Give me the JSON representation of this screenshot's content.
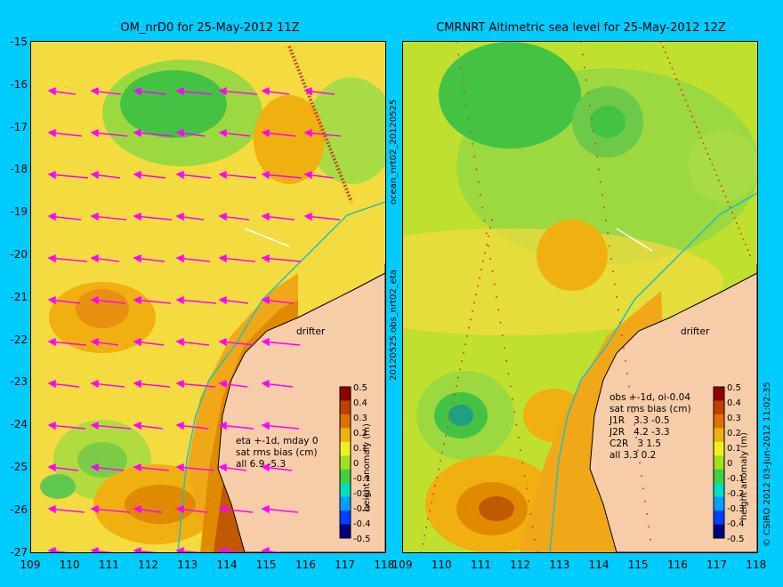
{
  "left_panel": {
    "title": "OM_nrD0 for 25-May-2012 11Z",
    "stats": [
      "eta +-1d, mday 0",
      "sat rms bias (cm)",
      "all 6.9 -5.3"
    ],
    "drifter_label": "drifter",
    "colorbar_label": "height anomaly (m)"
  },
  "right_panel": {
    "title": "CMRNRT Altimetric sea level  for 25-May-2012 12Z",
    "stats": [
      "obs +-1d, oi-0.04",
      "sat rms bias (cm)",
      "J1R   3.3 -0.5",
      "J2R   4.2 -3.3",
      "C2R   3 1.5",
      "all 3.3 0.2"
    ],
    "drifter_label": "drifter",
    "colorbar_label": "height anomaly (m)"
  },
  "side_labels": {
    "middle_top": "ocean_nrt02_20120525",
    "middle_bottom": "20120525.obs_nrt02_eta",
    "right_edge": "© CSIRO 2012   03-Jun-2012 11:02:35"
  },
  "axes": {
    "y_ticks": [
      "-15",
      "-16",
      "-17",
      "-18",
      "-19",
      "-20",
      "-21",
      "-22",
      "-23",
      "-24",
      "-25",
      "-26",
      "-27"
    ],
    "x_ticks": [
      "109",
      "110",
      "111",
      "112",
      "113",
      "114",
      "115",
      "116",
      "117",
      "118"
    ],
    "lon_range": [
      109,
      118
    ],
    "lat_range": [
      -27,
      -15
    ]
  },
  "colorbar": {
    "ticks": [
      "0.5",
      "0.4",
      "0.3",
      "0.2",
      "0.1",
      "0",
      "-0.1",
      "-0.2",
      "-0.3",
      "-0.4",
      "-0.5"
    ],
    "range": [
      -0.5,
      0.5
    ],
    "colors": [
      "#000080",
      "#0040ff",
      "#00a0ff",
      "#00e0c0",
      "#40d040",
      "#a0e020",
      "#f0f020",
      "#f0b010",
      "#e07000",
      "#c04000",
      "#900000"
    ]
  },
  "colors": {
    "background": "#00ccff",
    "land": "#f7cca8",
    "vector": "#ff00ff",
    "contour_low": "#44c244",
    "contour_high": "#e08a00"
  }
}
